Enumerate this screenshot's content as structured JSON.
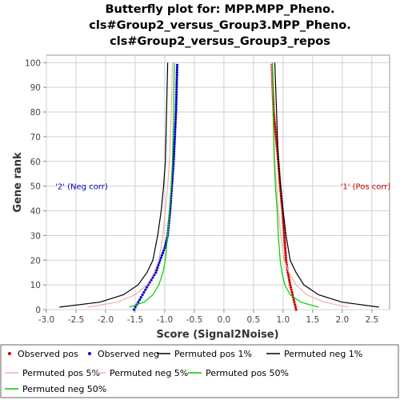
{
  "chart_data": {
    "type": "line",
    "title_lines": [
      "Butterfly plot for: MPP.MPP_Pheno.",
      "cls#Group2_versus_Group3.MPP_Pheno.",
      "cls#Group2_versus_Group3_repos"
    ],
    "xlabel": "Score (Signal2Noise)",
    "ylabel": "Gene rank",
    "xlim": [
      -3.0,
      2.8
    ],
    "ylim": [
      0,
      103
    ],
    "xticks": [
      "-3.0",
      "-2.5",
      "-2.0",
      "-1.5",
      "-1.0",
      "-0.5",
      "0.0",
      "0.5",
      "1.0",
      "1.5",
      "2.0",
      "2.5"
    ],
    "yticks": [
      "0",
      "10",
      "20",
      "30",
      "40",
      "50",
      "60",
      "70",
      "80",
      "90",
      "100"
    ],
    "grid": true,
    "annotations": [
      {
        "text": "'2' (Neg corr)",
        "x": -2.85,
        "y": 50,
        "color": "#0000cc"
      },
      {
        "text": "'1' (Pos corr)",
        "x": 1.97,
        "y": 50,
        "color": "#cc0000"
      }
    ],
    "series": [
      {
        "name": "Observed pos",
        "kind": "points",
        "color": "#cc0000",
        "x": [
          1.22,
          1.17,
          1.12,
          1.08,
          1.05,
          1.02,
          0.99,
          0.95,
          0.92,
          0.88,
          0.84,
          0.81
        ],
        "y": [
          0,
          5,
          10,
          15,
          20,
          30,
          40,
          50,
          60,
          70,
          80,
          99
        ]
      },
      {
        "name": "Observed neg",
        "kind": "points",
        "color": "#0000cc",
        "x": [
          -1.52,
          -1.4,
          -1.28,
          -1.15,
          -1.08,
          -1.0,
          -0.95,
          -0.91,
          -0.88,
          -0.85,
          -0.83,
          -0.81,
          -0.79
        ],
        "y": [
          0,
          5,
          10,
          15,
          20,
          25,
          30,
          40,
          50,
          60,
          70,
          80,
          99
        ]
      },
      {
        "name": "Permuted pos 1%",
        "kind": "line",
        "color": "#000000",
        "x": [
          2.62,
          2.0,
          1.6,
          1.35,
          1.22,
          1.12,
          1.05,
          1.0,
          0.96,
          0.92,
          0.89,
          0.86
        ],
        "y": [
          1,
          3,
          6,
          10,
          15,
          20,
          30,
          40,
          50,
          60,
          80,
          100
        ]
      },
      {
        "name": "Permuted neg 1%",
        "kind": "line",
        "color": "#000000",
        "x": [
          -2.78,
          -2.1,
          -1.7,
          -1.45,
          -1.3,
          -1.2,
          -1.12,
          -1.06,
          -1.02,
          -0.99,
          -0.97,
          -0.95
        ],
        "y": [
          1,
          3,
          6,
          10,
          15,
          20,
          30,
          40,
          50,
          60,
          80,
          100
        ]
      },
      {
        "name": "Permuted pos 5%",
        "kind": "line",
        "color": "#f0b0a8",
        "x": [
          2.1,
          1.7,
          1.4,
          1.22,
          1.1,
          1.02,
          0.96,
          0.92,
          0.89,
          0.86,
          0.83,
          0.81
        ],
        "y": [
          1,
          3,
          6,
          10,
          15,
          20,
          30,
          40,
          50,
          60,
          80,
          100
        ]
      },
      {
        "name": "Permuted neg 5%",
        "kind": "line",
        "color": "#f0b0a8",
        "x": [
          -2.3,
          -1.8,
          -1.5,
          -1.3,
          -1.18,
          -1.1,
          -1.03,
          -0.99,
          -0.95,
          -0.92,
          -0.89,
          -0.87
        ],
        "y": [
          1,
          3,
          6,
          10,
          15,
          20,
          30,
          40,
          50,
          60,
          80,
          100
        ]
      },
      {
        "name": "Permuted pos 50%",
        "kind": "line",
        "color": "#00cc00",
        "x": [
          1.6,
          1.3,
          1.12,
          1.03,
          0.98,
          0.95,
          0.92,
          0.9,
          0.87,
          0.85,
          0.83,
          0.82
        ],
        "y": [
          1,
          3,
          6,
          10,
          15,
          20,
          30,
          40,
          50,
          60,
          80,
          100
        ]
      },
      {
        "name": "Permuted neg 50%",
        "kind": "line",
        "color": "#00cc00",
        "x": [
          -1.6,
          -1.35,
          -1.2,
          -1.1,
          -1.03,
          -0.99,
          -0.95,
          -0.92,
          -0.89,
          -0.87,
          -0.85,
          -0.84
        ],
        "y": [
          1,
          3,
          6,
          10,
          15,
          20,
          30,
          40,
          50,
          60,
          80,
          100
        ]
      }
    ],
    "legend_order": [
      "Observed pos",
      "Observed neg",
      "Permuted pos 1%",
      "Permuted neg 1%",
      "Permuted pos 5%",
      "Permuted neg 5%",
      "Permuted pos 50%",
      "Permuted neg 50%"
    ]
  }
}
